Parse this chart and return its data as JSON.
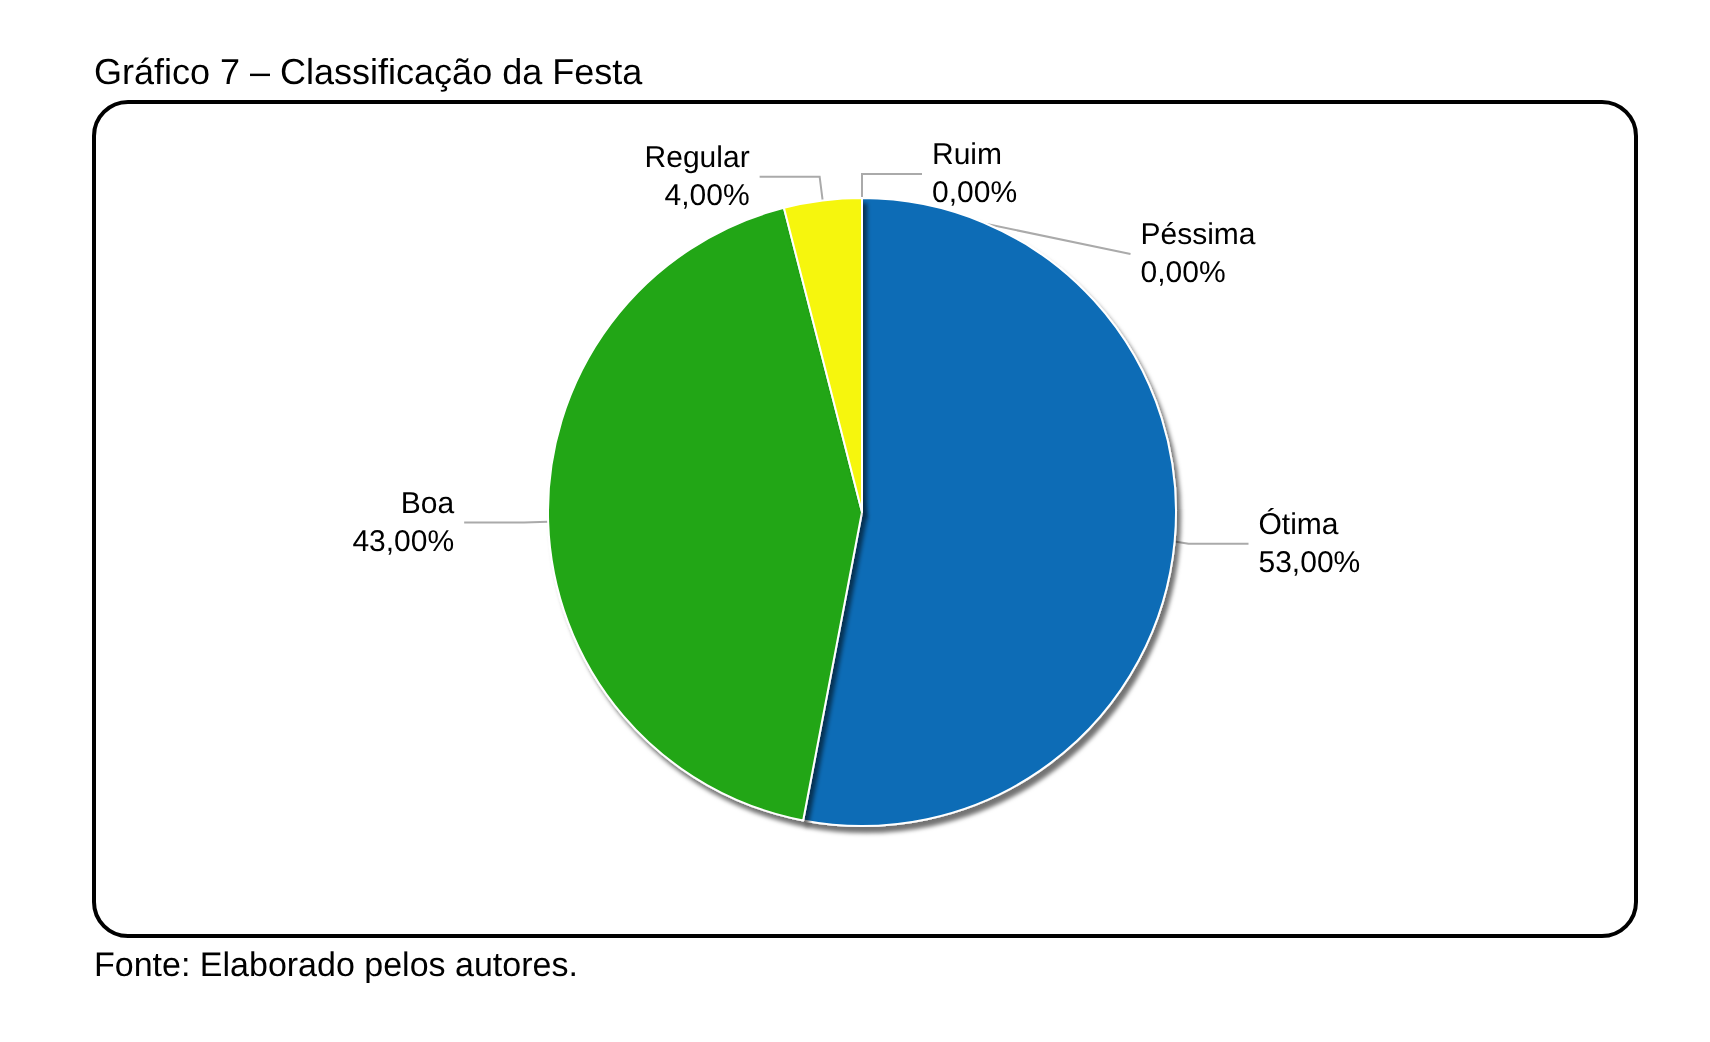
{
  "chart_data": {
    "type": "pie",
    "title": "Gráfico 7 – Classificação da Festa",
    "categories": [
      "Ótima",
      "Boa",
      "Regular",
      "Ruim",
      "Péssima"
    ],
    "values": [
      53,
      43,
      4,
      0,
      0
    ],
    "value_labels": [
      "53,00%",
      "43,00%",
      "4,00%",
      "0,00%",
      "0,00%"
    ],
    "colors": [
      "#0a6cb6",
      "#20a614",
      "#f6f60e",
      null,
      null
    ],
    "annotations": [
      "Fonte: Elaborado pelos autores."
    ]
  }
}
